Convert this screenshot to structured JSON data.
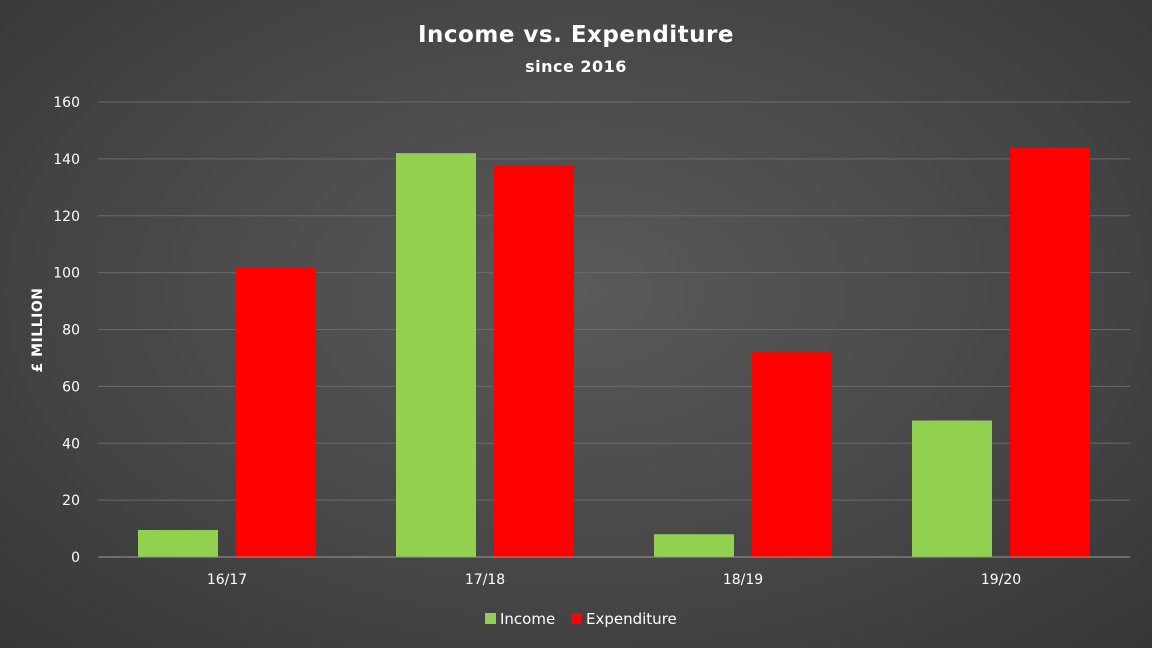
{
  "chart_data": {
    "type": "bar",
    "title": "Income vs. Expenditure",
    "subtitle": "since 2016",
    "ylabel": "£ MILLION",
    "xlabel": "",
    "categories": [
      "16/17",
      "17/18",
      "18/19",
      "19/20"
    ],
    "series": [
      {
        "name": "Income",
        "color": "#92d050",
        "values": [
          9.5,
          142,
          8,
          48
        ]
      },
      {
        "name": "Expenditure",
        "color": "#ff0000",
        "values": [
          102,
          137.5,
          72,
          144
        ]
      }
    ],
    "ylim": [
      0,
      160
    ],
    "yticks": [
      0,
      20,
      40,
      60,
      80,
      100,
      120,
      140,
      160
    ],
    "grid": true,
    "legend_position": "bottom"
  }
}
